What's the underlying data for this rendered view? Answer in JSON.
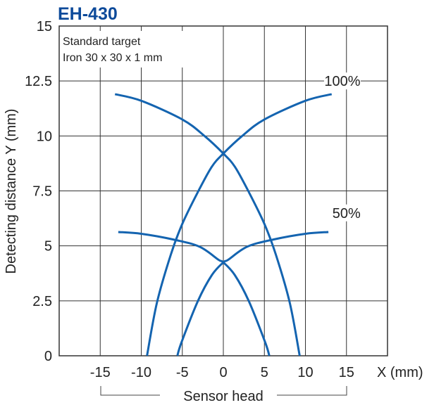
{
  "chart_data": {
    "type": "line",
    "title": "EH-430",
    "title_color": "#0d4a9a",
    "xlabel": "X (mm)",
    "ylabel": "Detecting distance Y (mm)",
    "bracket_label": "Sensor head",
    "annotation_lines": [
      "Standard target",
      "Iron 30 x 30 x 1 mm"
    ],
    "xlim": [
      -20,
      20
    ],
    "ylim": [
      0,
      15
    ],
    "x_ticks": [
      -15,
      -10,
      -5,
      0,
      5,
      10,
      15
    ],
    "x_tick_labels": [
      "-15",
      "-10",
      "-5",
      "0",
      "5",
      "10",
      "15"
    ],
    "y_ticks": [
      0,
      2.5,
      5,
      7.5,
      10,
      12.5,
      15
    ],
    "y_tick_labels": [
      "0",
      "2.5",
      "5",
      "7.5",
      "10",
      "12.5",
      "15"
    ],
    "grid": true,
    "line_color": "#1464b0",
    "series": [
      {
        "name": "100%",
        "label_at": [
          14.5,
          12.5
        ],
        "curves": [
          [
            [
              -13.2,
              11.9
            ],
            [
              -10,
              11.6
            ],
            [
              -5,
              10.75
            ],
            [
              -2.3,
              10.0
            ],
            [
              0,
              9.2
            ],
            [
              1.4,
              8.6
            ],
            [
              3.1,
              7.45
            ],
            [
              5,
              6.0
            ],
            [
              6.4,
              4.6
            ],
            [
              8.1,
              2.4
            ],
            [
              9.3,
              0
            ]
          ],
          [
            [
              -9.3,
              0
            ],
            [
              -8.1,
              2.4
            ],
            [
              -6.4,
              4.6
            ],
            [
              -5,
              6.0
            ],
            [
              -3.1,
              7.45
            ],
            [
              -1.4,
              8.6
            ],
            [
              0,
              9.2
            ],
            [
              2.3,
              10.0
            ],
            [
              5,
              10.75
            ],
            [
              10,
              11.6
            ],
            [
              13.2,
              11.9
            ]
          ]
        ]
      },
      {
        "name": "50%",
        "label_at": [
          15,
          6.5
        ],
        "curves": [
          [
            [
              -12.8,
              5.63
            ],
            [
              -10,
              5.55
            ],
            [
              -6.1,
              5.29
            ],
            [
              -2.9,
              4.96
            ],
            [
              -0.6,
              4.37
            ],
            [
              0,
              4.25
            ],
            [
              1.4,
              3.67
            ],
            [
              3.1,
              2.49
            ],
            [
              5.1,
              0.61
            ],
            [
              5.6,
              0
            ]
          ],
          [
            [
              -5.6,
              0
            ],
            [
              -5.1,
              0.61
            ],
            [
              -3.1,
              2.49
            ],
            [
              -1.4,
              3.67
            ],
            [
              0,
              4.25
            ],
            [
              0.6,
              4.37
            ],
            [
              2.9,
              4.96
            ],
            [
              6.1,
              5.29
            ],
            [
              10,
              5.55
            ],
            [
              12.8,
              5.63
            ]
          ]
        ]
      }
    ]
  }
}
